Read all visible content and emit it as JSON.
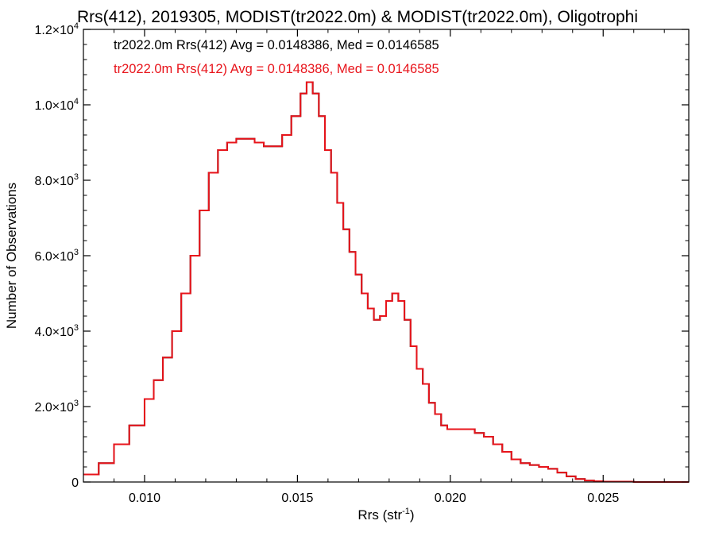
{
  "chart_data": {
    "type": "line",
    "style": "histogram-step",
    "title": "Rrs(412), 2019305, MODIST(tr2022.0m) & MODIST(tr2022.0m), Oligotrophi",
    "xlabel": {
      "main": "Rrs (str",
      "sup": "-1",
      "end": ")"
    },
    "ylabel": "Number of Observations",
    "xlim": [
      0.008,
      0.0278
    ],
    "ylim": [
      0,
      12000
    ],
    "grid": false,
    "x_ticks": [
      {
        "value": 0.01,
        "label": "0.010"
      },
      {
        "value": 0.015,
        "label": "0.015"
      },
      {
        "value": 0.02,
        "label": "0.020"
      },
      {
        "value": 0.025,
        "label": "0.025"
      }
    ],
    "y_ticks": [
      {
        "value": 0,
        "mant": "0",
        "exp": ""
      },
      {
        "value": 2000,
        "mant": "2.0×10",
        "exp": "3"
      },
      {
        "value": 4000,
        "mant": "4.0×10",
        "exp": "3"
      },
      {
        "value": 6000,
        "mant": "6.0×10",
        "exp": "3"
      },
      {
        "value": 8000,
        "mant": "8.0×10",
        "exp": "3"
      },
      {
        "value": 10000,
        "mant": "1.0×10",
        "exp": "4"
      },
      {
        "value": 12000,
        "mant": "1.2×10",
        "exp": "4"
      }
    ],
    "annotations": [
      {
        "text": "tr2022.0m Rrs(412) Avg = 0.0148386, Med = 0.0146585",
        "color": "#000000"
      },
      {
        "text": "tr2022.0m Rrs(412) Avg = 0.0148386, Med = 0.0146585",
        "color": "#e8141b"
      }
    ],
    "series": [
      {
        "color": "#000000",
        "x": [
          0.008,
          0.0085,
          0.009,
          0.0095,
          0.01,
          0.0103,
          0.0106,
          0.0109,
          0.0112,
          0.0115,
          0.0118,
          0.0121,
          0.0124,
          0.0127,
          0.013,
          0.0133,
          0.0136,
          0.0139,
          0.0142,
          0.0145,
          0.0148,
          0.0151,
          0.0153,
          0.0155,
          0.0157,
          0.0159,
          0.0161,
          0.0163,
          0.0165,
          0.0167,
          0.0169,
          0.0171,
          0.0173,
          0.0175,
          0.0177,
          0.0179,
          0.0181,
          0.0183,
          0.0185,
          0.0187,
          0.0189,
          0.0191,
          0.0193,
          0.0195,
          0.0197,
          0.0199,
          0.0202,
          0.0205,
          0.0208,
          0.0211,
          0.0214,
          0.0217,
          0.022,
          0.0223,
          0.0226,
          0.0229,
          0.0232,
          0.0235,
          0.0238,
          0.0241,
          0.0244,
          0.0247,
          0.025,
          0.026,
          0.0278
        ],
        "y": [
          200,
          500,
          1000,
          1500,
          2200,
          2700,
          3300,
          4000,
          5000,
          6000,
          7200,
          8200,
          8800,
          9000,
          9100,
          9100,
          9000,
          8900,
          8900,
          9200,
          9700,
          10300,
          10600,
          10300,
          9700,
          8800,
          8200,
          7400,
          6700,
          6100,
          5500,
          5000,
          4600,
          4300,
          4400,
          4800,
          5000,
          4800,
          4300,
          3600,
          3000,
          2600,
          2100,
          1800,
          1500,
          1400,
          1400,
          1400,
          1300,
          1200,
          1000,
          800,
          600,
          500,
          450,
          400,
          350,
          250,
          150,
          80,
          40,
          20,
          10,
          0,
          0
        ]
      },
      {
        "color": "#e8141b",
        "x": [
          0.008,
          0.0085,
          0.009,
          0.0095,
          0.01,
          0.0103,
          0.0106,
          0.0109,
          0.0112,
          0.0115,
          0.0118,
          0.0121,
          0.0124,
          0.0127,
          0.013,
          0.0133,
          0.0136,
          0.0139,
          0.0142,
          0.0145,
          0.0148,
          0.0151,
          0.0153,
          0.0155,
          0.0157,
          0.0159,
          0.0161,
          0.0163,
          0.0165,
          0.0167,
          0.0169,
          0.0171,
          0.0173,
          0.0175,
          0.0177,
          0.0179,
          0.0181,
          0.0183,
          0.0185,
          0.0187,
          0.0189,
          0.0191,
          0.0193,
          0.0195,
          0.0197,
          0.0199,
          0.0202,
          0.0205,
          0.0208,
          0.0211,
          0.0214,
          0.0217,
          0.022,
          0.0223,
          0.0226,
          0.0229,
          0.0232,
          0.0235,
          0.0238,
          0.0241,
          0.0244,
          0.0247,
          0.025,
          0.026,
          0.0278
        ],
        "y": [
          200,
          500,
          1000,
          1500,
          2200,
          2700,
          3300,
          4000,
          5000,
          6000,
          7200,
          8200,
          8800,
          9000,
          9100,
          9100,
          9000,
          8900,
          8900,
          9200,
          9700,
          10300,
          10600,
          10300,
          9700,
          8800,
          8200,
          7400,
          6700,
          6100,
          5500,
          5000,
          4600,
          4300,
          4400,
          4800,
          5000,
          4800,
          4300,
          3600,
          3000,
          2600,
          2100,
          1800,
          1500,
          1400,
          1400,
          1400,
          1300,
          1200,
          1000,
          800,
          600,
          500,
          450,
          400,
          350,
          250,
          150,
          80,
          40,
          20,
          10,
          0,
          0
        ]
      }
    ]
  }
}
